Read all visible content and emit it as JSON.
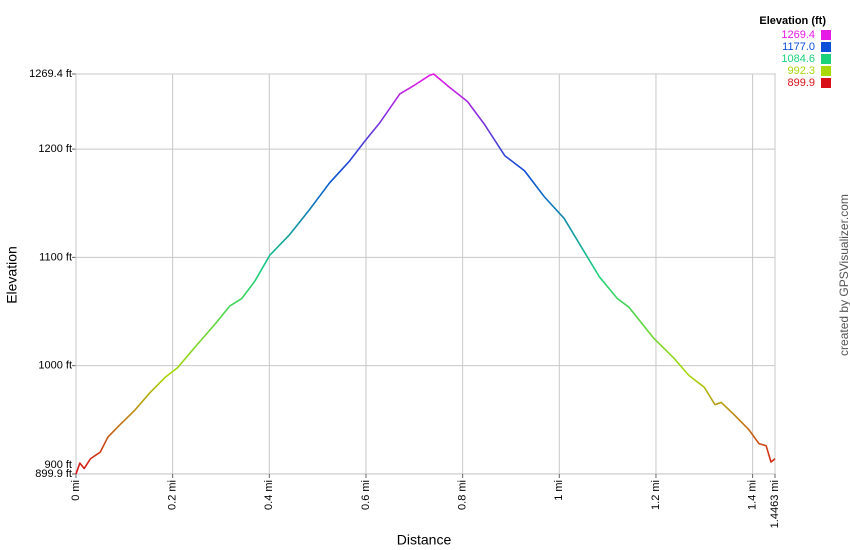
{
  "chart_data": {
    "type": "line",
    "x_label": "Distance",
    "y_label": "Elevation",
    "grid": true,
    "xlim": [
      0,
      1.4463
    ],
    "ylim": [
      899.9,
      1269.4
    ],
    "xticks": [
      {
        "value": 0,
        "label": "0 mi"
      },
      {
        "value": 0.2,
        "label": "0.2 mi"
      },
      {
        "value": 0.4,
        "label": "0.4 mi"
      },
      {
        "value": 0.6,
        "label": "0.6 mi"
      },
      {
        "value": 0.8,
        "label": "0.8 mi"
      },
      {
        "value": 1,
        "label": "1 mi"
      },
      {
        "value": 1.2,
        "label": "1.2 mi"
      },
      {
        "value": 1.4,
        "label": "1.4 mi"
      },
      {
        "value": 1.4463,
        "label": "1.4463 mi"
      }
    ],
    "yticks": [
      {
        "value": 899.9,
        "label": "899.9 ft"
      },
      {
        "value": 900,
        "label": "900 ft"
      },
      {
        "value": 1000,
        "label": "1000 ft"
      },
      {
        "value": 1100,
        "label": "1100 ft"
      },
      {
        "value": 1200,
        "label": "1200 ft"
      },
      {
        "value": 1269.4,
        "label": "1269.4 ft"
      }
    ],
    "x": [
      0,
      0.008,
      0.017,
      0.03,
      0.043,
      0.05,
      0.066,
      0.09,
      0.122,
      0.153,
      0.184,
      0.21,
      0.246,
      0.287,
      0.318,
      0.343,
      0.37,
      0.401,
      0.442,
      0.483,
      0.525,
      0.566,
      0.597,
      0.628,
      0.67,
      0.7,
      0.731,
      0.74,
      0.773,
      0.81,
      0.845,
      0.887,
      0.928,
      0.969,
      1.01,
      1.041,
      1.083,
      1.12,
      1.144,
      1.196,
      1.237,
      1.268,
      1.3,
      1.322,
      1.335,
      1.361,
      1.392,
      1.413,
      1.428,
      1.438,
      1.4463
    ],
    "values": [
      899.9,
      910,
      905,
      914,
      918,
      920,
      934,
      945,
      959,
      975,
      989,
      998,
      1017,
      1038,
      1055,
      1062,
      1078,
      1102,
      1121,
      1144,
      1169,
      1189,
      1207,
      1224,
      1251,
      1259,
      1268,
      1269.4,
      1257,
      1244,
      1223,
      1194,
      1180,
      1156,
      1136,
      1113,
      1082,
      1062,
      1054,
      1025,
      1007,
      991,
      980,
      964,
      966,
      955,
      941,
      928,
      926,
      911,
      914
    ],
    "color_scale": {
      "title": "Elevation (ft)",
      "stops": [
        {
          "value": 1269.4,
          "label": "1269.4",
          "color": "#e619e6"
        },
        {
          "value": 1177,
          "label": "1177.0",
          "color": "#0a4fd8"
        },
        {
          "value": 1084.6,
          "label": "1084.6",
          "color": "#19d27a"
        },
        {
          "value": 992.3,
          "label": "992.3",
          "color": "#a8d80a"
        },
        {
          "value": 899.9,
          "label": "899.9",
          "color": "#d8101a"
        }
      ]
    },
    "credit": "created by GPSVisualizer.com"
  }
}
